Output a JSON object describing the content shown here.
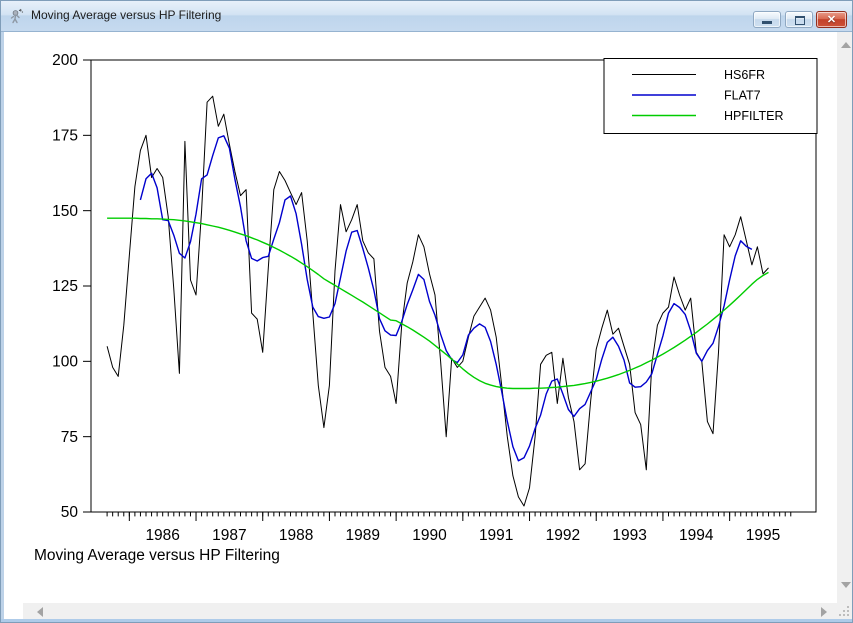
{
  "window": {
    "title": "Moving Average versus HP Filtering",
    "icon": "graph-window-icon",
    "controls": {
      "minimize": "minimize",
      "restore": "restore",
      "close": "close",
      "close_glyph": "x"
    }
  },
  "caption": "Moving Average versus HP Filtering",
  "chart_data": {
    "type": "line",
    "title": "Moving Average versus HP Filtering",
    "frequency": "monthly",
    "sample_start": "1985M09",
    "sample_end": "1995M08",
    "xlabel": "",
    "ylabel": "",
    "ylim": [
      50,
      200
    ],
    "yticks": [
      50,
      75,
      100,
      125,
      150,
      175,
      200
    ],
    "x_year_labels": [
      "1986",
      "1987",
      "1988",
      "1989",
      "1990",
      "1991",
      "1992",
      "1993",
      "1994",
      "1995"
    ],
    "grid": false,
    "legend_position": "top-right",
    "legend_entries": [
      "HS6FR",
      "FLAT7",
      "HPFILTER"
    ],
    "series": [
      {
        "name": "HS6FR",
        "color": "#000000",
        "stroke_width": 1,
        "values": [
          105,
          98,
          95,
          112,
          135,
          158,
          170,
          175,
          161,
          164,
          161,
          148,
          124,
          96,
          173,
          127,
          122,
          150,
          186,
          188,
          178,
          182,
          172,
          163,
          155,
          157,
          116,
          114,
          103,
          131,
          157,
          163,
          160,
          156,
          152,
          156,
          140,
          116,
          92,
          78,
          92,
          130,
          152,
          143,
          147,
          152,
          140,
          136,
          134,
          110,
          98,
          95,
          86,
          112,
          126,
          133,
          142,
          138,
          129,
          122,
          100,
          75,
          101,
          98,
          100,
          108,
          115,
          118,
          121,
          117,
          108,
          92,
          75,
          62,
          55,
          52,
          58,
          75,
          99,
          102,
          103,
          86,
          101,
          88,
          80,
          64,
          66,
          87,
          104,
          111,
          117,
          109,
          111,
          105,
          99,
          83,
          79,
          64,
          99,
          112,
          116,
          118,
          128,
          122,
          117,
          121,
          103,
          100,
          80,
          76,
          103,
          142,
          138,
          142,
          148,
          140,
          132,
          138,
          129,
          131
        ]
      },
      {
        "name": "FLAT7",
        "color": "#0000cd",
        "stroke_width": 1.4,
        "derivation": "centered 7-term moving average of HS6FR",
        "ma_window": 7,
        "start_index": 6
      },
      {
        "name": "HPFILTER",
        "color": "#00cc00",
        "stroke_width": 1.4,
        "values": [
          147.5,
          147.5,
          147.5,
          147.5,
          147.5,
          147.5,
          147.4,
          147.4,
          147.3,
          147.3,
          147.2,
          147.1,
          147.0,
          146.8,
          146.6,
          146.3,
          146.0,
          145.7,
          145.3,
          144.9,
          144.5,
          144.0,
          143.5,
          142.9,
          142.3,
          141.7,
          141.0,
          140.3,
          139.5,
          138.7,
          137.8,
          136.9,
          135.9,
          134.9,
          133.8,
          132.6,
          131.4,
          130.1,
          128.8,
          127.4,
          126.3,
          125.2,
          124.1,
          123.0,
          121.9,
          120.8,
          119.7,
          118.5,
          117.3,
          116.1,
          114.9,
          113.7,
          113.5,
          112.5,
          111.5,
          110.4,
          109.2,
          108.0,
          106.7,
          105.3,
          103.8,
          102.3,
          100.7,
          99.1,
          97.5,
          96.0,
          94.7,
          93.6,
          92.7,
          92.1,
          91.6,
          91.3,
          91.1,
          91.0,
          91.0,
          91.0,
          91.0,
          91.1,
          91.1,
          91.2,
          91.3,
          91.4,
          91.6,
          91.8,
          92.0,
          92.3,
          92.6,
          93.0,
          93.4,
          93.9,
          94.4,
          95.0,
          95.6,
          96.3,
          97.0,
          97.8,
          98.6,
          99.5,
          100.4,
          101.4,
          102.4,
          103.5,
          104.6,
          105.8,
          107.0,
          108.3,
          109.6,
          111.0,
          112.4,
          113.9,
          115.4,
          117.0,
          118.6,
          120.3,
          122.0,
          123.8,
          125.6,
          127.2,
          128.5,
          129.5
        ]
      }
    ]
  },
  "scrollbars": {
    "vertical": {
      "up": "scroll-up-icon",
      "down": "scroll-down-icon"
    },
    "horizontal": {
      "left": "scroll-left-icon",
      "right": "scroll-right-icon"
    },
    "resize_grip": "resize-grip-icon"
  }
}
